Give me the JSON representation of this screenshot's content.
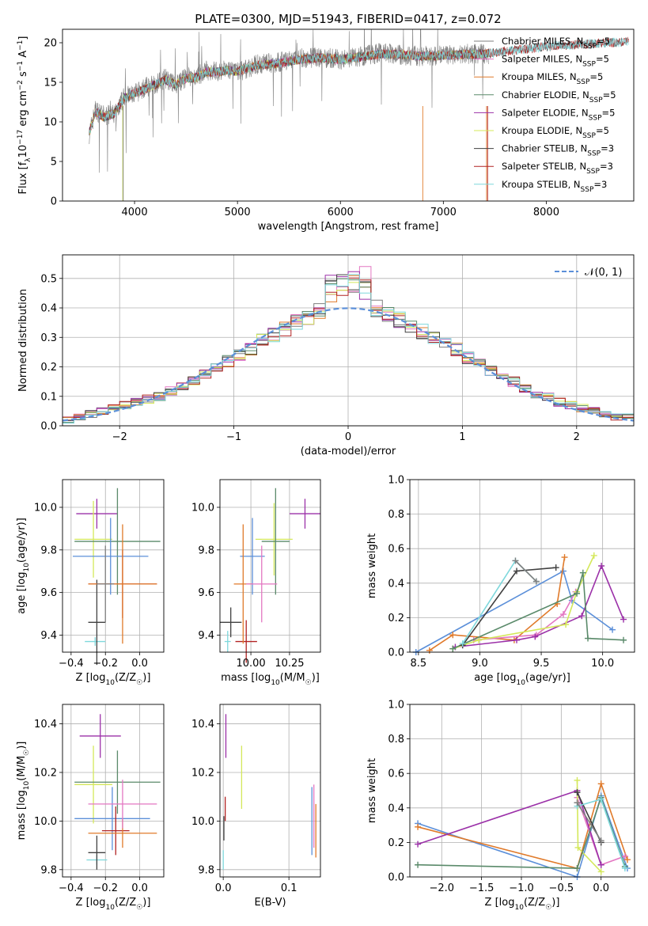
{
  "figure_title": "PLATE=0300, MJD=51943, FIBERID=0417, z=0.072",
  "chart_data": [
    {
      "id": "spectrum",
      "type": "line",
      "title": "PLATE=0300, MJD=51943, FIBERID=0417, z=0.072",
      "xlabel": "wavelength [Angstrom, rest frame]",
      "ylabel": "Flux [fλ10⁻¹⁷ erg cm⁻² s⁻¹ A⁻¹]",
      "xlim": [
        3300,
        8850
      ],
      "ylim": [
        0,
        21.7
      ],
      "xticks": [
        4000,
        5000,
        6000,
        7000,
        8000
      ],
      "yticks": [
        0,
        5,
        10,
        15,
        20
      ],
      "grid": false,
      "legend_position": "right",
      "data_envelope": {
        "x": [
          3560,
          3620,
          3700,
          3800,
          3900,
          4000,
          4100,
          4200,
          4300,
          4400,
          4500,
          4600,
          4700,
          4800,
          4900,
          5000,
          5200,
          5400,
          5600,
          5800,
          6000,
          6200,
          6400,
          6600,
          6800,
          7000,
          7200,
          7400,
          7440
        ],
        "y": [
          8.5,
          11.5,
          10.8,
          10.9,
          13.2,
          13.5,
          14.3,
          14.8,
          15.5,
          14.6,
          15.6,
          15.7,
          16.5,
          16.4,
          16.6,
          16.3,
          17.3,
          17.5,
          18.0,
          18.2,
          17.9,
          18.3,
          18.7,
          18.4,
          18.3,
          18.4,
          18.6,
          18.6,
          18.6
        ]
      },
      "model_envelope": {
        "x": [
          3560,
          3620,
          3700,
          3800,
          3900,
          4000,
          4100,
          4200,
          4300,
          4400,
          4500,
          4600,
          4700,
          4800,
          4900,
          5000,
          5200,
          5400,
          5600,
          5800,
          6000,
          6200,
          6400,
          6600,
          6800,
          7000,
          7200,
          7400,
          7600,
          7800,
          8000,
          8200,
          8400,
          8600,
          8800
        ],
        "y": [
          8.7,
          11.3,
          10.6,
          11.0,
          13.0,
          13.6,
          14.1,
          14.7,
          15.3,
          14.7,
          15.5,
          15.6,
          16.3,
          16.3,
          16.5,
          16.4,
          17.2,
          17.4,
          17.9,
          18.1,
          17.9,
          18.2,
          18.6,
          18.5,
          18.3,
          18.4,
          18.5,
          18.6,
          18.9,
          19.2,
          19.5,
          19.7,
          19.8,
          20.0,
          20.1
        ]
      },
      "series": [
        {
          "name": "Chabrier MILES, N_SSP=5",
          "color": "#7f7f7f"
        },
        {
          "name": "Salpeter MILES, N_SSP=5",
          "color": "#e377c2"
        },
        {
          "name": "Kroupa MILES, N_SSP=5",
          "color": "#e07a2a"
        },
        {
          "name": "Chabrier ELODIE, N_SSP=5",
          "color": "#5a8a6a"
        },
        {
          "name": "Salpeter ELODIE, N_SSP=5",
          "color": "#9b30a8"
        },
        {
          "name": "Kroupa ELODIE, N_SSP=5",
          "color": "#d4e85a"
        },
        {
          "name": "Chabrier STELIB, N_SSP=3",
          "color": "#404040"
        },
        {
          "name": "Salpeter STELIB, N_SSP=3",
          "color": "#b22222"
        },
        {
          "name": "Kroupa STELIB, N_SSP=3",
          "color": "#7ed8dc"
        }
      ]
    },
    {
      "id": "residuals",
      "type": "bar",
      "xlabel": "(data-model)/error",
      "ylabel": "Normed distribution",
      "xlim": [
        -2.5,
        2.5
      ],
      "ylim": [
        0,
        0.58
      ],
      "xticks": [
        -2,
        -1,
        0,
        1,
        2
      ],
      "yticks": [
        0.0,
        0.1,
        0.2,
        0.3,
        0.4,
        0.5
      ],
      "grid": true,
      "legend_position": "top-right",
      "bins": [
        -2.5,
        -2.4,
        -2.3,
        -2.2,
        -2.1,
        -2.0,
        -1.9,
        -1.8,
        -1.7,
        -1.6,
        -1.5,
        -1.4,
        -1.3,
        -1.2,
        -1.1,
        -1.0,
        -0.9,
        -0.8,
        -0.7,
        -0.6,
        -0.5,
        -0.4,
        -0.3,
        -0.2,
        -0.1,
        0.0,
        0.1,
        0.2,
        0.3,
        0.4,
        0.5,
        0.6,
        0.7,
        0.8,
        0.9,
        1.0,
        1.1,
        1.2,
        1.3,
        1.4,
        1.5,
        1.6,
        1.7,
        1.8,
        1.9,
        2.0,
        2.1,
        2.2,
        2.3,
        2.4,
        2.5
      ],
      "histogram_values": [
        0.02,
        0.03,
        0.04,
        0.05,
        0.06,
        0.07,
        0.08,
        0.09,
        0.1,
        0.12,
        0.13,
        0.15,
        0.18,
        0.2,
        0.22,
        0.24,
        0.26,
        0.29,
        0.31,
        0.33,
        0.35,
        0.37,
        0.39,
        0.41,
        0.43,
        0.44,
        0.43,
        0.4,
        0.38,
        0.36,
        0.34,
        0.32,
        0.3,
        0.28,
        0.26,
        0.23,
        0.21,
        0.19,
        0.17,
        0.15,
        0.13,
        0.11,
        0.1,
        0.08,
        0.07,
        0.06,
        0.05,
        0.04,
        0.03,
        0.03
      ],
      "reference_curve": {
        "name": "N(0,1)",
        "mean": 0,
        "sigma": 1,
        "color": "#5b8fd9",
        "style": "dashed"
      },
      "series_colors": [
        "#7f7f7f",
        "#e377c2",
        "#e07a2a",
        "#5a8a6a",
        "#9b30a8",
        "#d4e85a",
        "#404040",
        "#b22222",
        "#7ed8dc"
      ]
    },
    {
      "id": "age_vs_Z",
      "type": "scatter",
      "xlabel": "Z [log10(Z/Z☉)]",
      "ylabel": "age  [log10(age/yr)]",
      "xlim": [
        -0.45,
        0.14
      ],
      "ylim": [
        9.32,
        10.13
      ],
      "xticks": [
        -0.4,
        -0.2,
        0.0
      ],
      "yticks": [
        9.4,
        9.6,
        9.8,
        10.0
      ],
      "grid": true,
      "points": [
        {
          "x": -0.26,
          "y": 9.37,
          "xerr": 0.06,
          "yerr": 0.02,
          "color": "#7ed8dc"
        },
        {
          "x": -0.25,
          "y": 9.46,
          "xerr": 0.05,
          "yerr": 0.2,
          "color": "#404040"
        },
        {
          "x": -0.25,
          "y": 9.97,
          "xerr": 0.12,
          "yerr": 0.07,
          "color": "#9b30a8"
        },
        {
          "x": -0.27,
          "y": 9.85,
          "xerr": 0.11,
          "yerr": 0.18,
          "color": "#d4e85a"
        },
        {
          "x": -0.13,
          "y": 9.84,
          "xerr": 0.25,
          "yerr": 0.25,
          "color": "#5a8a6a"
        },
        {
          "x": -0.17,
          "y": 9.77,
          "xerr": 0.22,
          "yerr": 0.18,
          "color": "#5b8fd9"
        },
        {
          "x": -0.1,
          "y": 9.64,
          "xerr": 0.2,
          "yerr": 0.16,
          "color": "#b22222"
        },
        {
          "x": -0.1,
          "y": 9.64,
          "xerr": 0.2,
          "yerr": 0.28,
          "color": "#e07a2a"
        },
        {
          "x": -0.2,
          "y": 9.64,
          "xerr": 0.05,
          "yerr": 0.18,
          "color": "#7f7f7f"
        }
      ]
    },
    {
      "id": "age_vs_mass",
      "type": "scatter",
      "xlabel": "mass [log10(M/M☉)]",
      "ylabel": "",
      "xlim": [
        9.8,
        10.45
      ],
      "ylim": [
        9.32,
        10.13
      ],
      "xticks": [
        10.0,
        10.25
      ],
      "yticks": [
        9.4,
        9.6,
        9.8,
        10.0
      ],
      "grid": true,
      "points": [
        {
          "x": 9.85,
          "y": 9.37,
          "xerr": 0.02,
          "yerr": 0.05,
          "color": "#7ed8dc"
        },
        {
          "x": 9.87,
          "y": 9.46,
          "xerr": 0.07,
          "yerr": 0.07,
          "color": "#404040"
        },
        {
          "x": 9.97,
          "y": 9.37,
          "xerr": 0.07,
          "yerr": 0.1,
          "color": "#b22222"
        },
        {
          "x": 10.35,
          "y": 9.97,
          "xerr": 0.1,
          "yerr": 0.07,
          "color": "#9b30a8"
        },
        {
          "x": 10.15,
          "y": 9.85,
          "xerr": 0.12,
          "yerr": 0.17,
          "color": "#d4e85a"
        },
        {
          "x": 10.16,
          "y": 9.84,
          "xerr": 0.09,
          "yerr": 0.25,
          "color": "#5a8a6a"
        },
        {
          "x": 10.01,
          "y": 9.77,
          "xerr": 0.08,
          "yerr": 0.18,
          "color": "#5b8fd9"
        },
        {
          "x": 9.95,
          "y": 9.64,
          "xerr": 0.06,
          "yerr": 0.28,
          "color": "#e07a2a"
        },
        {
          "x": 10.07,
          "y": 9.64,
          "xerr": 0.1,
          "yerr": 0.18,
          "color": "#e377c2"
        }
      ]
    },
    {
      "id": "weight_vs_age",
      "type": "line",
      "xlabel": "age  [log10(age/yr)]",
      "ylabel": "mass weight",
      "xlim": [
        8.43,
        10.26
      ],
      "ylim": [
        0,
        1.0
      ],
      "xticks": [
        8.5,
        9.0,
        9.5,
        10.0
      ],
      "yticks": [
        0.0,
        0.2,
        0.4,
        0.6,
        0.8,
        1.0
      ],
      "grid": true,
      "series": [
        {
          "color": "#5b8fd9",
          "x": [
            8.48,
            9.68,
            9.75,
            10.08
          ],
          "y": [
            0.0,
            0.47,
            0.3,
            0.13
          ]
        },
        {
          "color": "#e07a2a",
          "x": [
            8.59,
            8.78,
            9.28,
            9.63,
            9.69
          ],
          "y": [
            0.01,
            0.1,
            0.07,
            0.28,
            0.55
          ]
        },
        {
          "color": "#e377c2",
          "x": [
            8.95,
            9.46,
            9.68,
            9.78
          ],
          "y": [
            0.07,
            0.1,
            0.22,
            0.35
          ]
        },
        {
          "color": "#9b30a8",
          "x": [
            8.8,
            9.3,
            9.45,
            9.83,
            9.99,
            10.17
          ],
          "y": [
            0.03,
            0.07,
            0.09,
            0.21,
            0.5,
            0.19
          ]
        },
        {
          "color": "#d4e85a",
          "x": [
            8.78,
            8.99,
            9.7,
            9.79,
            9.93
          ],
          "y": [
            0.02,
            0.07,
            0.16,
            0.35,
            0.56
          ]
        },
        {
          "color": "#5a8a6a",
          "x": [
            8.78,
            9.79,
            9.84,
            9.88,
            10.17
          ],
          "y": [
            0.02,
            0.34,
            0.46,
            0.08,
            0.07
          ]
        },
        {
          "color": "#404040",
          "x": [
            8.86,
            9.3,
            9.62
          ],
          "y": [
            0.04,
            0.47,
            0.49
          ]
        },
        {
          "color": "#7ed8dc",
          "x": [
            8.86,
            9.29,
            9.46
          ],
          "y": [
            0.05,
            0.53,
            0.41
          ]
        },
        {
          "color": "#7f7f7f",
          "x": [
            9.29,
            9.46
          ],
          "y": [
            0.53,
            0.41
          ]
        }
      ]
    },
    {
      "id": "mass_vs_Z",
      "type": "scatter",
      "xlabel": "Z [log10(Z/Z☉)]",
      "ylabel": "mass [log10(M/M☉)]",
      "xlim": [
        -0.45,
        0.14
      ],
      "ylim": [
        9.77,
        10.48
      ],
      "xticks": [
        -0.4,
        -0.2,
        0.0
      ],
      "yticks": [
        9.8,
        10.0,
        10.2,
        10.4
      ],
      "grid": true,
      "points": [
        {
          "x": -0.25,
          "y": 9.84,
          "xerr": 0.06,
          "yerr": 0.02,
          "color": "#7ed8dc"
        },
        {
          "x": -0.25,
          "y": 9.87,
          "xerr": 0.05,
          "yerr": 0.07,
          "color": "#404040"
        },
        {
          "x": -0.23,
          "y": 10.35,
          "xerr": 0.12,
          "yerr": 0.09,
          "color": "#9b30a8"
        },
        {
          "x": -0.27,
          "y": 10.15,
          "xerr": 0.11,
          "yerr": 0.16,
          "color": "#d4e85a"
        },
        {
          "x": -0.13,
          "y": 10.16,
          "xerr": 0.25,
          "yerr": 0.13,
          "color": "#5a8a6a"
        },
        {
          "x": -0.16,
          "y": 10.01,
          "xerr": 0.22,
          "yerr": 0.13,
          "color": "#5b8fd9"
        },
        {
          "x": -0.14,
          "y": 9.96,
          "xerr": 0.08,
          "yerr": 0.1,
          "color": "#b22222"
        },
        {
          "x": -0.1,
          "y": 9.95,
          "xerr": 0.2,
          "yerr": 0.06,
          "color": "#e07a2a"
        },
        {
          "x": -0.1,
          "y": 10.07,
          "xerr": 0.2,
          "yerr": 0.1,
          "color": "#e377c2"
        }
      ]
    },
    {
      "id": "mass_vs_ebv",
      "type": "scatter",
      "xlabel": "E(B-V)",
      "ylabel": "",
      "xlim": [
        -0.005,
        0.148
      ],
      "ylim": [
        9.77,
        10.48
      ],
      "xticks": [
        0.0,
        0.1
      ],
      "yticks": [
        9.8,
        10.0,
        10.2,
        10.4
      ],
      "grid": true,
      "points": [
        {
          "x": 0.0,
          "y": 9.84,
          "xerr": 0.0,
          "yerr": 0.04,
          "color": "#7ed8dc"
        },
        {
          "x": 0.001,
          "y": 9.97,
          "xerr": 0.0,
          "yerr": 0.05,
          "color": "#404040"
        },
        {
          "x": 0.004,
          "y": 10.35,
          "xerr": 0.0,
          "yerr": 0.09,
          "color": "#9b30a8"
        },
        {
          "x": 0.028,
          "y": 10.18,
          "xerr": 0.0,
          "yerr": 0.13,
          "color": "#d4e85a"
        },
        {
          "x": 0.003,
          "y": 10.05,
          "xerr": 0.0,
          "yerr": 0.05,
          "color": "#b22222"
        },
        {
          "x": 0.135,
          "y": 10.0,
          "xerr": 0.0,
          "yerr": 0.14,
          "color": "#5b8fd9"
        },
        {
          "x": 0.138,
          "y": 10.02,
          "xerr": 0.0,
          "yerr": 0.13,
          "color": "#e377c2"
        },
        {
          "x": 0.141,
          "y": 9.96,
          "xerr": 0.0,
          "yerr": 0.11,
          "color": "#e07a2a"
        }
      ]
    },
    {
      "id": "weight_vs_Z",
      "type": "line",
      "xlabel": "Z [log10(Z/Z☉)]",
      "ylabel": "mass weight",
      "xlim": [
        -2.4,
        0.42
      ],
      "ylim": [
        0,
        1.0
      ],
      "xticks": [
        -2.0,
        -1.5,
        -1.0,
        -0.5,
        0.0
      ],
      "yticks": [
        0.0,
        0.2,
        0.4,
        0.6,
        0.8,
        1.0
      ],
      "grid": true,
      "series": [
        {
          "color": "#5b8fd9",
          "x": [
            -2.3,
            -0.3,
            0.0,
            0.33
          ],
          "y": [
            0.31,
            0.0,
            0.47,
            0.05
          ]
        },
        {
          "color": "#e07a2a",
          "x": [
            -2.3,
            -0.3,
            0.0,
            0.33
          ],
          "y": [
            0.29,
            0.05,
            0.54,
            0.1
          ]
        },
        {
          "color": "#e377c2",
          "x": [
            -0.3,
            0.0,
            0.3
          ],
          "y": [
            0.46,
            0.07,
            0.12
          ]
        },
        {
          "color": "#9b30a8",
          "x": [
            -2.3,
            -0.3,
            0.0
          ],
          "y": [
            0.19,
            0.5,
            0.07
          ]
        },
        {
          "color": "#d4e85a",
          "x": [
            -0.3,
            -0.29,
            0.0
          ],
          "y": [
            0.56,
            0.17,
            0.03
          ]
        },
        {
          "color": "#5a8a6a",
          "x": [
            -2.3,
            -0.3,
            0.0,
            0.3
          ],
          "y": [
            0.07,
            0.05,
            0.46,
            0.06
          ]
        },
        {
          "color": "#404040",
          "x": [
            -0.3,
            0.0
          ],
          "y": [
            0.49,
            0.2
          ]
        },
        {
          "color": "#7ed8dc",
          "x": [
            -0.3,
            0.0,
            0.3
          ],
          "y": [
            0.41,
            0.45,
            0.05
          ]
        },
        {
          "color": "#7f7f7f",
          "x": [
            -0.3,
            0.0
          ],
          "y": [
            0.43,
            0.21
          ]
        }
      ]
    }
  ]
}
